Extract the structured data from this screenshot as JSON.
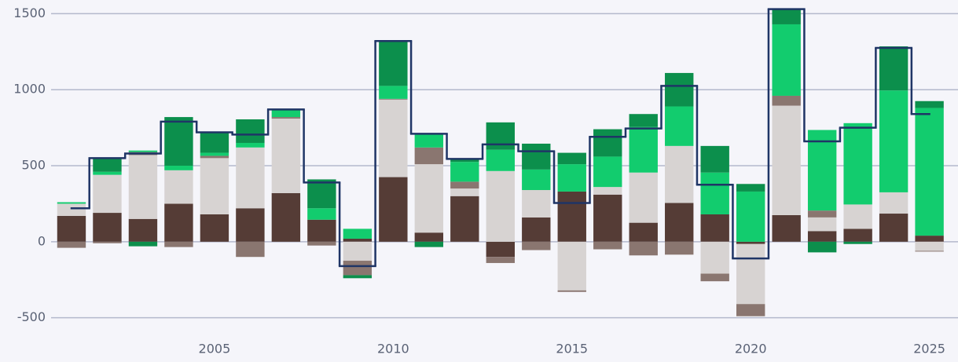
{
  "chart_data": {
    "type": "bar",
    "stacked": true,
    "grid": true,
    "x": [
      2001,
      2002,
      2003,
      2004,
      2005,
      2006,
      2007,
      2008,
      2009,
      2010,
      2011,
      2012,
      2013,
      2014,
      2015,
      2016,
      2017,
      2018,
      2019,
      2020,
      2021,
      2022,
      2023,
      2024,
      2025
    ],
    "series": [
      {
        "color": "#553c36",
        "values": [
          170,
          190,
          150,
          250,
          180,
          220,
          320,
          145,
          20,
          425,
          60,
          300,
          -100,
          160,
          330,
          310,
          125,
          255,
          180,
          -15,
          175,
          70,
          85,
          185,
          40
        ]
      },
      {
        "color": "#d7d3d2",
        "values": [
          80,
          250,
          420,
          220,
          370,
          400,
          490,
          0,
          -125,
          510,
          450,
          50,
          465,
          180,
          -320,
          50,
          330,
          375,
          -210,
          -395,
          720,
          90,
          160,
          140,
          -60
        ]
      },
      {
        "color": "#8a7670",
        "values": [
          -40,
          -10,
          20,
          -35,
          15,
          -100,
          10,
          -25,
          -95,
          5,
          110,
          45,
          -40,
          -55,
          -10,
          -50,
          -90,
          -85,
          -50,
          -80,
          65,
          45,
          0,
          0,
          -5
        ]
      },
      {
        "color": "#12cc6e",
        "values": [
          10,
          20,
          10,
          30,
          20,
          30,
          50,
          75,
          65,
          85,
          90,
          130,
          140,
          135,
          180,
          200,
          300,
          260,
          275,
          330,
          470,
          530,
          535,
          670,
          840
        ]
      },
      {
        "color": "#0c8f4c",
        "values": [
          0,
          90,
          -30,
          320,
          130,
          155,
          0,
          190,
          -20,
          295,
          -35,
          15,
          180,
          170,
          75,
          180,
          85,
          220,
          175,
          50,
          100,
          -70,
          -15,
          290,
          45
        ]
      }
    ],
    "line": {
      "color": "#1f3566",
      "values": [
        220,
        550,
        580,
        790,
        720,
        705,
        870,
        390,
        -160,
        1320,
        710,
        545,
        640,
        595,
        255,
        690,
        745,
        1025,
        375,
        -110,
        1530,
        660,
        750,
        1275,
        840
      ]
    },
    "xlim": [
      1999,
      2025.8
    ],
    "xticks": [
      2005,
      2010,
      2015,
      2020,
      2025
    ],
    "ylim": [
      -600,
      1590
    ],
    "yticks": [
      -500,
      0,
      500,
      1000,
      1500
    ]
  }
}
